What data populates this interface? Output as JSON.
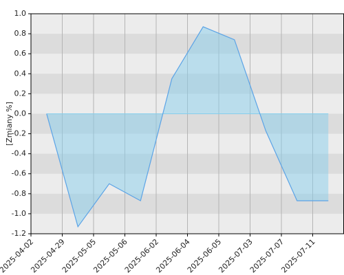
{
  "chart_data": {
    "type": "area",
    "y_label": "[Zmiany %]",
    "categories": [
      "2025-04-02",
      "2025-04-29",
      "2025-05-05",
      "2025-05-06",
      "2025-06-02",
      "2025-06-04",
      "2025-06-05",
      "2025-07-03",
      "2025-07-07",
      "2025-07-11"
    ],
    "values": [
      0.0,
      -1.13,
      -0.7,
      -0.87,
      0.35,
      0.87,
      0.74,
      -0.17,
      -0.87,
      -0.87
    ],
    "color": "#5ba3e6",
    "fill": "#87ceeb",
    "ylim": [
      -1.2,
      1.0
    ],
    "yticks": [
      {
        "value": 1,
        "label": "1.0"
      },
      0.8,
      0.6,
      0.4,
      0.2,
      {
        "value": 0,
        "label": "0.0"
      },
      -0.2,
      -0.4,
      -0.6,
      -0.8,
      {
        "value": -1,
        "label": "-1.0"
      },
      -1.2
    ],
    "grid": true
  }
}
